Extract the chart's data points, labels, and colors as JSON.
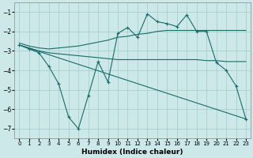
{
  "xlabel": "Humidex (Indice chaleur)",
  "bg_color": "#cce8e8",
  "grid_color": "#aacece",
  "line_color": "#1a6b6b",
  "xlim": [
    -0.5,
    23.5
  ],
  "ylim": [
    -7.5,
    -0.5
  ],
  "yticks": [
    -7,
    -6,
    -5,
    -4,
    -3,
    -2,
    -1
  ],
  "xticks": [
    0,
    1,
    2,
    3,
    4,
    5,
    6,
    7,
    8,
    9,
    10,
    11,
    12,
    13,
    14,
    15,
    16,
    17,
    18,
    19,
    20,
    21,
    22,
    23
  ],
  "line1_x": [
    0,
    1,
    2,
    3,
    4,
    5,
    6,
    7,
    8,
    9,
    10,
    11,
    12,
    13,
    14,
    15,
    16,
    17,
    18,
    19,
    20,
    21,
    22,
    23
  ],
  "line1_y": [
    -2.7,
    -2.9,
    -3.1,
    -3.8,
    -4.7,
    -6.4,
    -7.0,
    -5.3,
    -3.55,
    -4.6,
    -2.1,
    -1.8,
    -2.3,
    -1.1,
    -1.5,
    -1.6,
    -1.75,
    -1.15,
    -2.0,
    -2.0,
    -3.6,
    -4.0,
    -4.8,
    -6.5
  ],
  "line2_x": [
    0,
    1,
    2,
    3,
    4,
    5,
    6,
    7,
    8,
    9,
    10,
    11,
    12,
    13,
    14,
    15,
    16,
    17,
    18,
    23
  ],
  "line2_y": [
    -2.6,
    -2.75,
    -2.85,
    -2.9,
    -2.85,
    -2.8,
    -2.75,
    -2.65,
    -2.55,
    -2.45,
    -2.3,
    -2.25,
    -2.15,
    -2.1,
    -2.0,
    -1.95,
    -1.95,
    -1.95,
    -1.95,
    -1.95
  ],
  "line3_x": [
    0,
    1,
    2,
    3,
    4,
    5,
    6,
    7,
    8,
    9,
    10,
    11,
    12,
    13,
    14,
    15,
    16,
    17,
    18,
    19,
    20,
    21,
    22,
    23
  ],
  "line3_y": [
    -2.7,
    -2.85,
    -3.0,
    -3.1,
    -3.15,
    -3.2,
    -3.25,
    -3.3,
    -3.35,
    -3.4,
    -3.45,
    -3.45,
    -3.45,
    -3.45,
    -3.45,
    -3.45,
    -3.45,
    -3.45,
    -3.45,
    -3.5,
    -3.5,
    -3.55,
    -3.55,
    -3.55
  ]
}
